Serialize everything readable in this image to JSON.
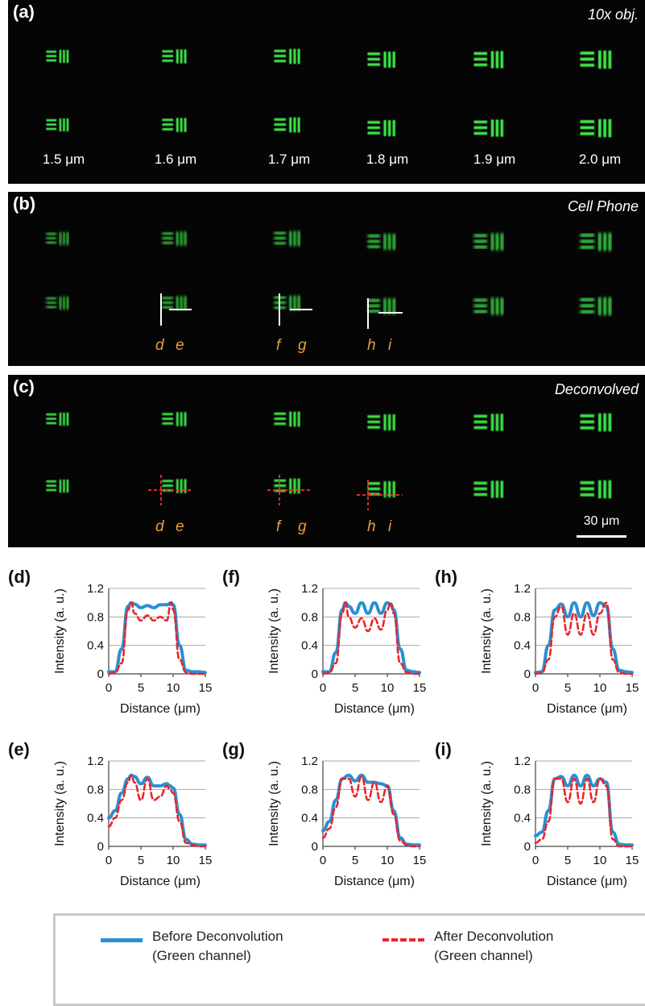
{
  "panels": [
    {
      "letter": "(a)",
      "tag": "10x obj."
    },
    {
      "letter": "(b)",
      "tag": "Cell Phone"
    },
    {
      "letter": "(c)",
      "tag": "Deconvolved"
    }
  ],
  "size_labels": [
    "1.5 μm",
    "1.6 μm",
    "1.7 μm",
    "1.8 μm",
    "1.9 μm",
    "2.0 μm"
  ],
  "profile_letters": [
    "d",
    "e",
    "f",
    "g",
    "h",
    "i"
  ],
  "scale_bar": {
    "label": "30 μm"
  },
  "colors": {
    "before": "#2b8fd1",
    "after": "#e8262c",
    "target": "#3ee84a",
    "profile_label": "#e8a03a"
  },
  "legend": {
    "before_line1": "Before Deconvolution",
    "before_line2": "(Green channel)",
    "after_line1": "After Deconvolution",
    "after_line2": "(Green channel)"
  },
  "chart_data": [
    {
      "panel": "(d)",
      "type": "line",
      "xlabel": "Distance (μm)",
      "ylabel": "Intensity (a. u.)",
      "xlim": [
        0,
        15
      ],
      "ylim": [
        0,
        1.2
      ],
      "xticks": [
        "0",
        "5",
        "10",
        "15"
      ],
      "yticks": [
        "0",
        "0.4",
        "0.8",
        "1.2"
      ],
      "x": [
        0,
        1,
        2,
        3,
        3.5,
        4,
        5,
        6,
        7,
        8,
        9,
        9.7,
        10,
        11,
        12,
        13,
        14,
        15
      ],
      "series": [
        {
          "values": [
            0.03,
            0.03,
            0.35,
            0.95,
            1.0,
            0.98,
            0.93,
            0.96,
            0.93,
            0.97,
            0.97,
            1.0,
            0.97,
            0.4,
            0.05,
            0.03,
            0.03,
            0.02
          ]
        },
        {
          "values": [
            0.0,
            0.02,
            0.15,
            0.9,
            1.0,
            0.85,
            0.75,
            0.82,
            0.75,
            0.8,
            0.75,
            1.0,
            0.9,
            0.2,
            0.02,
            0.0,
            0.0,
            0.0
          ]
        }
      ]
    },
    {
      "panel": "(f)",
      "type": "line",
      "xlabel": "Distance (μm)",
      "ylabel": "Intensity (a. u.)",
      "xlim": [
        0,
        15
      ],
      "ylim": [
        0,
        1.2
      ],
      "xticks": [
        "0",
        "5",
        "10",
        "15"
      ],
      "yticks": [
        "0",
        "0.4",
        "0.8",
        "1.2"
      ],
      "x": [
        0,
        1,
        2,
        3,
        3.5,
        4,
        5,
        6,
        7,
        8,
        9,
        10,
        10.5,
        11,
        12,
        13,
        14,
        15
      ],
      "series": [
        {
          "values": [
            0.03,
            0.03,
            0.3,
            0.9,
            1.0,
            0.95,
            0.85,
            1.0,
            0.85,
            1.0,
            0.85,
            1.0,
            0.98,
            0.9,
            0.35,
            0.05,
            0.03,
            0.02
          ]
        },
        {
          "values": [
            0.0,
            0.02,
            0.15,
            0.85,
            1.0,
            0.8,
            0.65,
            0.78,
            0.6,
            0.78,
            0.62,
            0.9,
            1.0,
            0.85,
            0.15,
            0.02,
            0.0,
            0.0
          ]
        }
      ]
    },
    {
      "panel": "(h)",
      "type": "line",
      "xlabel": "Distance (μm)",
      "ylabel": "Intensity (a. u.)",
      "xlim": [
        0,
        15
      ],
      "ylim": [
        0,
        1.2
      ],
      "xticks": [
        "0",
        "5",
        "10",
        "15"
      ],
      "yticks": [
        "0",
        "0.4",
        "0.8",
        "1.2"
      ],
      "x": [
        0,
        1,
        2,
        3,
        4,
        5,
        6,
        7,
        8,
        9,
        10,
        11,
        12,
        13,
        14,
        15
      ],
      "series": [
        {
          "values": [
            0.02,
            0.03,
            0.4,
            0.9,
            0.98,
            0.8,
            1.0,
            0.8,
            1.0,
            0.82,
            1.0,
            0.95,
            0.35,
            0.05,
            0.03,
            0.02
          ]
        },
        {
          "values": [
            0.0,
            0.02,
            0.2,
            0.8,
            0.95,
            0.55,
            0.85,
            0.55,
            0.85,
            0.55,
            0.85,
            1.0,
            0.2,
            0.02,
            0.0,
            0.0
          ]
        }
      ]
    },
    {
      "panel": "(e)",
      "type": "line",
      "xlabel": "Distance (μm)",
      "ylabel": "Intensity (a. u.)",
      "xlim": [
        0,
        15
      ],
      "ylim": [
        0,
        1.2
      ],
      "xticks": [
        "0",
        "5",
        "10",
        "15"
      ],
      "yticks": [
        "0",
        "0.4",
        "0.8",
        "1.2"
      ],
      "x": [
        0,
        1,
        2,
        3,
        3.5,
        4,
        5,
        6,
        7,
        8,
        9,
        9.5,
        10,
        11,
        12,
        13,
        14,
        15
      ],
      "series": [
        {
          "values": [
            0.4,
            0.5,
            0.75,
            0.95,
            1.0,
            0.98,
            0.88,
            0.97,
            0.85,
            0.85,
            0.88,
            0.85,
            0.82,
            0.45,
            0.1,
            0.03,
            0.02,
            0.02
          ]
        },
        {
          "values": [
            0.28,
            0.4,
            0.65,
            0.9,
            1.0,
            0.9,
            0.65,
            0.95,
            0.65,
            0.7,
            0.85,
            0.8,
            0.75,
            0.35,
            0.05,
            0.02,
            0.0,
            0.0
          ]
        }
      ]
    },
    {
      "panel": "(g)",
      "type": "line",
      "xlabel": "Distance (μm)",
      "ylabel": "Intensity (a. u.)",
      "xlim": [
        0,
        15
      ],
      "ylim": [
        0,
        1.2
      ],
      "xticks": [
        "0",
        "5",
        "10",
        "15"
      ],
      "yticks": [
        "0",
        "0.4",
        "0.8",
        "1.2"
      ],
      "x": [
        0,
        1,
        2,
        3,
        4,
        5,
        6,
        7,
        8,
        9,
        10,
        11,
        12,
        13,
        14,
        15
      ],
      "series": [
        {
          "values": [
            0.22,
            0.35,
            0.65,
            0.95,
            1.0,
            0.92,
            1.0,
            0.9,
            0.9,
            0.88,
            0.85,
            0.5,
            0.12,
            0.03,
            0.02,
            0.02
          ]
        },
        {
          "values": [
            0.12,
            0.25,
            0.55,
            0.95,
            0.95,
            0.7,
            0.98,
            0.65,
            0.9,
            0.62,
            0.85,
            0.45,
            0.08,
            0.02,
            0.0,
            0.0
          ]
        }
      ]
    },
    {
      "panel": "(i)",
      "type": "line",
      "xlabel": "Distance (μm)",
      "ylabel": "Intensity (a. u.)",
      "xlim": [
        0,
        15
      ],
      "ylim": [
        0,
        1.2
      ],
      "xticks": [
        "0",
        "5",
        "10",
        "15"
      ],
      "yticks": [
        "0",
        "0.4",
        "0.8",
        "1.2"
      ],
      "x": [
        0,
        1,
        2,
        3,
        4,
        5,
        6,
        7,
        8,
        9,
        10,
        11,
        12,
        13,
        14,
        15
      ],
      "series": [
        {
          "values": [
            0.15,
            0.2,
            0.5,
            0.95,
            0.98,
            0.85,
            1.0,
            0.85,
            1.0,
            0.85,
            0.95,
            0.9,
            0.2,
            0.03,
            0.02,
            0.02
          ]
        },
        {
          "values": [
            0.05,
            0.1,
            0.35,
            0.95,
            0.95,
            0.62,
            0.95,
            0.6,
            0.95,
            0.62,
            0.95,
            0.85,
            0.1,
            0.0,
            0.0,
            0.0
          ]
        }
      ]
    }
  ]
}
